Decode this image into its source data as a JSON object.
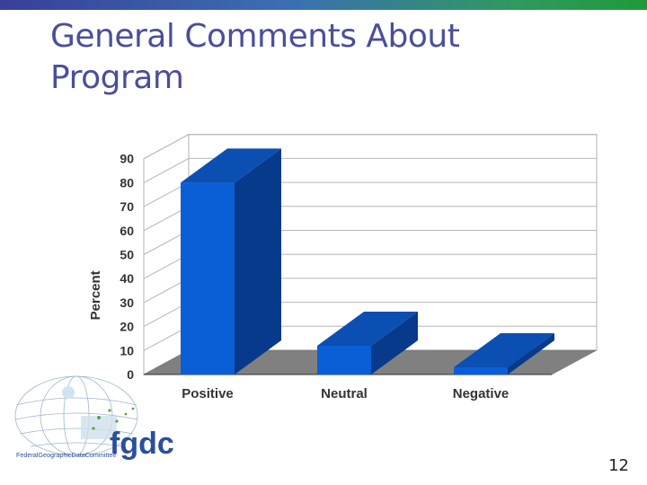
{
  "slide": {
    "title_line1": "General Comments About",
    "title_line2": "Program",
    "page_number": "12"
  },
  "logo": {
    "acronym": "fgdc",
    "full_name": "FederalGeographicDataCommittee"
  },
  "colors": {
    "bar_front": "#0a5fd6",
    "bar_top": "#0b4fb3",
    "bar_side": "#073a8a",
    "floor": "#808080",
    "title": "#4a4f9a"
  },
  "chart_data": {
    "type": "bar",
    "categories": [
      "Positive",
      "Neutral",
      "Negative"
    ],
    "values": [
      80,
      12,
      3
    ],
    "ylabel": "Percent",
    "xlabel": "",
    "ylim": [
      0,
      90
    ],
    "yticks": [
      0,
      10,
      20,
      30,
      40,
      50,
      60,
      70,
      80,
      90
    ],
    "grid": true,
    "style": "3d"
  }
}
